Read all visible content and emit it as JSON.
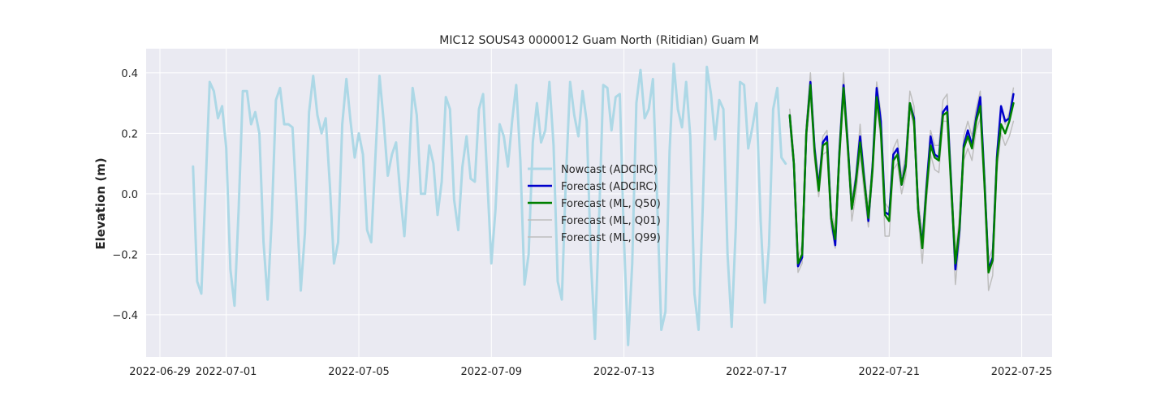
{
  "chart_data": {
    "type": "line",
    "title": "MIC12 SOUS43 0000012 Guam North (Ritidian) Guam M",
    "xlabel": "",
    "ylabel": "Elevation (m)",
    "xlim": [
      "2022-06-28T14:00",
      "2022-07-25T22:00"
    ],
    "ylim": [
      -0.54,
      0.48
    ],
    "x_ticks": [
      {
        "value": "2022-06-29",
        "label": "2022-06-29"
      },
      {
        "value": "2022-07-01",
        "label": "2022-07-01"
      },
      {
        "value": "2022-07-05",
        "label": "2022-07-05"
      },
      {
        "value": "2022-07-09",
        "label": "2022-07-09"
      },
      {
        "value": "2022-07-13",
        "label": "2022-07-13"
      },
      {
        "value": "2022-07-17",
        "label": "2022-07-17"
      },
      {
        "value": "2022-07-21",
        "label": "2022-07-21"
      },
      {
        "value": "2022-07-25",
        "label": "2022-07-25"
      }
    ],
    "y_ticks": [
      -0.4,
      -0.2,
      0.0,
      0.2,
      0.4
    ],
    "y_tick_labels": [
      "−0.4",
      "−0.2",
      "0.0",
      "0.2",
      "0.4"
    ],
    "grid": true,
    "legend_position": "center",
    "background": "#EAEAF2",
    "series": [
      {
        "name": "Nowcast (ADCIRC)",
        "color": "#ADD8E6",
        "width": 3,
        "x_start": "2022-06-30T00:00",
        "x_step_hours": 3,
        "values": [
          0.09,
          -0.29,
          -0.33,
          0.02,
          0.37,
          0.34,
          0.25,
          0.29,
          0.15,
          -0.25,
          -0.37,
          -0.05,
          0.34,
          0.34,
          0.23,
          0.27,
          0.2,
          -0.16,
          -0.35,
          -0.08,
          0.31,
          0.35,
          0.23,
          0.23,
          0.22,
          -0.03,
          -0.32,
          -0.13,
          0.27,
          0.39,
          0.26,
          0.2,
          0.25,
          0.03,
          -0.23,
          -0.16,
          0.23,
          0.38,
          0.24,
          0.12,
          0.2,
          0.13,
          -0.12,
          -0.16,
          0.12,
          0.39,
          0.24,
          0.06,
          0.13,
          0.17,
          0.0,
          -0.14,
          0.06,
          0.35,
          0.26,
          0.0,
          0.0,
          0.16,
          0.1,
          -0.07,
          0.04,
          0.32,
          0.28,
          -0.02,
          -0.12,
          0.09,
          0.19,
          0.05,
          0.04,
          0.28,
          0.33,
          0.05,
          -0.23,
          -0.05,
          0.23,
          0.19,
          0.09,
          0.24,
          0.36,
          0.11,
          -0.3,
          -0.2,
          0.17,
          0.3,
          0.17,
          0.21,
          0.37,
          0.16,
          -0.29,
          -0.35,
          0.06,
          0.37,
          0.26,
          0.19,
          0.34,
          0.24,
          -0.22,
          -0.48,
          -0.08,
          0.36,
          0.35,
          0.21,
          0.32,
          0.33,
          -0.15,
          -0.5,
          -0.23,
          0.3,
          0.41,
          0.25,
          0.28,
          0.38,
          -0.02,
          -0.45,
          -0.39,
          0.14,
          0.43,
          0.28,
          0.22,
          0.37,
          0.19,
          -0.33,
          -0.45,
          -0.05,
          0.42,
          0.33,
          0.18,
          0.31,
          0.28,
          -0.2,
          -0.44,
          -0.11,
          0.37,
          0.36,
          0.15,
          0.22,
          0.3,
          -0.09,
          -0.36,
          -0.17,
          0.28,
          0.35,
          0.12,
          0.1
        ]
      },
      {
        "name": "Forecast (ADCIRC)",
        "color": "#0000CC",
        "width": 2.5,
        "x_start": "2022-07-18T00:00",
        "x_step_hours": 3,
        "values": [
          0.26,
          0.1,
          -0.24,
          -0.21,
          0.2,
          0.37,
          0.15,
          0.02,
          0.17,
          0.19,
          -0.08,
          -0.17,
          0.14,
          0.36,
          0.17,
          -0.05,
          0.05,
          0.19,
          0.05,
          -0.09,
          0.09,
          0.35,
          0.24,
          -0.06,
          -0.07,
          0.13,
          0.15,
          0.03,
          0.1,
          0.3,
          0.25,
          -0.05,
          -0.17,
          0.02,
          0.19,
          0.13,
          0.12,
          0.27,
          0.29,
          0.03,
          -0.25,
          -0.12,
          0.16,
          0.21,
          0.16,
          0.25,
          0.32,
          0.05,
          -0.25,
          -0.21,
          0.12,
          0.29,
          0.24,
          0.25,
          0.33
        ]
      },
      {
        "name": "Forecast (ML, Q50)",
        "color": "#008000",
        "width": 2.5,
        "x_start": "2022-07-18T00:00",
        "x_step_hours": 3,
        "values": [
          0.26,
          0.1,
          -0.23,
          -0.2,
          0.2,
          0.36,
          0.14,
          0.01,
          0.16,
          0.17,
          -0.08,
          -0.15,
          0.13,
          0.35,
          0.16,
          -0.05,
          0.04,
          0.17,
          0.04,
          -0.08,
          0.08,
          0.32,
          0.21,
          -0.07,
          -0.09,
          0.11,
          0.13,
          0.03,
          0.09,
          0.3,
          0.24,
          -0.05,
          -0.18,
          0.01,
          0.16,
          0.12,
          0.11,
          0.26,
          0.27,
          0.02,
          -0.23,
          -0.11,
          0.15,
          0.19,
          0.15,
          0.24,
          0.29,
          0.04,
          -0.26,
          -0.22,
          0.11,
          0.23,
          0.2,
          0.24,
          0.3
        ]
      },
      {
        "name": "Forecast (ML, Q01)",
        "color": "#BEBEBE",
        "width": 1.5,
        "x_start": "2022-07-18T00:00",
        "x_step_hours": 3,
        "values": [
          0.23,
          0.08,
          -0.26,
          -0.23,
          0.17,
          0.33,
          0.11,
          -0.01,
          0.13,
          0.14,
          -0.11,
          -0.18,
          0.1,
          0.32,
          0.13,
          -0.09,
          0.0,
          0.13,
          0.0,
          -0.11,
          0.05,
          0.29,
          0.18,
          -0.14,
          -0.14,
          0.08,
          0.1,
          0.0,
          0.06,
          0.28,
          0.22,
          -0.08,
          -0.23,
          -0.03,
          0.13,
          0.08,
          0.07,
          0.24,
          0.24,
          -0.02,
          -0.3,
          -0.15,
          0.11,
          0.15,
          0.11,
          0.21,
          0.25,
          0.0,
          -0.32,
          -0.27,
          0.07,
          0.2,
          0.16,
          0.19,
          0.24
        ]
      },
      {
        "name": "Forecast (ML, Q99)",
        "color": "#BEBEBE",
        "width": 1.5,
        "x_start": "2022-07-18T00:00",
        "x_step_hours": 3,
        "values": [
          0.28,
          0.13,
          -0.21,
          -0.17,
          0.23,
          0.4,
          0.17,
          0.04,
          0.19,
          0.21,
          -0.05,
          -0.12,
          0.17,
          0.4,
          0.19,
          -0.02,
          0.07,
          0.23,
          0.07,
          -0.05,
          0.11,
          0.37,
          0.27,
          -0.03,
          -0.05,
          0.15,
          0.18,
          0.06,
          0.13,
          0.34,
          0.29,
          -0.01,
          -0.14,
          0.05,
          0.21,
          0.16,
          0.16,
          0.31,
          0.33,
          0.06,
          -0.2,
          -0.07,
          0.19,
          0.24,
          0.19,
          0.28,
          0.34,
          0.08,
          -0.22,
          -0.18,
          0.15,
          0.28,
          0.23,
          0.27,
          0.35
        ]
      }
    ]
  }
}
